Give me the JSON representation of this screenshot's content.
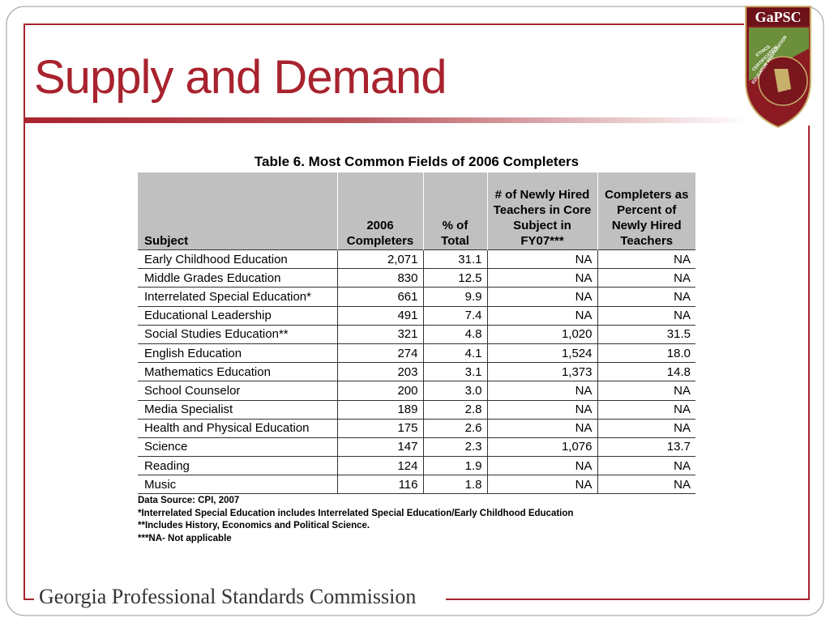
{
  "header": {
    "title": "Supply and Demand"
  },
  "logo": {
    "name": "GaPSC",
    "ring": [
      "ETHICS",
      "CERTIFICATION",
      "EDUCATOR PREPARATION"
    ]
  },
  "table": {
    "caption": "Table 6. Most Common Fields of 2006 Completers",
    "columns": [
      "Subject",
      "2006 Completers",
      "% of Total",
      "# of Newly Hired Teachers in Core Subject in FY07***",
      "Completers as Percent of Newly Hired Teachers"
    ],
    "rows": [
      [
        "Early Childhood Education",
        "2,071",
        "31.1",
        "NA",
        "NA"
      ],
      [
        "Middle Grades Education",
        "830",
        "12.5",
        "NA",
        "NA"
      ],
      [
        "Interrelated Special Education*",
        "661",
        "9.9",
        "NA",
        "NA"
      ],
      [
        "Educational Leadership",
        "491",
        "7.4",
        "NA",
        "NA"
      ],
      [
        "Social Studies Education**",
        "321",
        "4.8",
        "1,020",
        "31.5"
      ],
      [
        "English Education",
        "274",
        "4.1",
        "1,524",
        "18.0"
      ],
      [
        "Mathematics Education",
        "203",
        "3.1",
        "1,373",
        "14.8"
      ],
      [
        "School Counselor",
        "200",
        "3.0",
        "NA",
        "NA"
      ],
      [
        "Media Specialist",
        "189",
        "2.8",
        "NA",
        "NA"
      ],
      [
        "Health and Physical Education",
        "175",
        "2.6",
        "NA",
        "NA"
      ],
      [
        "Science",
        "147",
        "2.3",
        "1,076",
        "13.7"
      ],
      [
        "Reading",
        "124",
        "1.9",
        "NA",
        "NA"
      ],
      [
        "Music",
        "116",
        "1.8",
        "NA",
        "NA"
      ]
    ],
    "notes": [
      "Data Source: CPI, 2007",
      "*Interrelated Special Education includes Interrelated Special Education/Early Childhood Education",
      "**Includes History, Economics and Political Science.",
      "***NA- Not applicable"
    ]
  },
  "footer": {
    "text": "Georgia Professional Standards Commission"
  }
}
